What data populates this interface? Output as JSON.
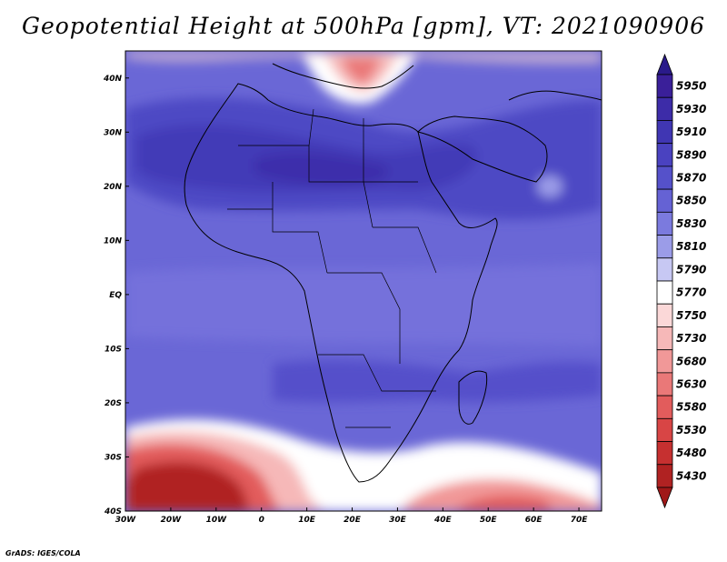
{
  "title": "Geopotential Height at 500hPa [gpm], VT: 2021090906",
  "credit": "GrADS: IGES/COLA",
  "map": {
    "lon_range": [
      -30,
      75
    ],
    "lat_range": [
      -40,
      45
    ],
    "lon_ticks": [
      {
        "value": -30,
        "label": "30W"
      },
      {
        "value": -20,
        "label": "20W"
      },
      {
        "value": -10,
        "label": "10W"
      },
      {
        "value": 0,
        "label": "0"
      },
      {
        "value": 10,
        "label": "10E"
      },
      {
        "value": 20,
        "label": "20E"
      },
      {
        "value": 30,
        "label": "30E"
      },
      {
        "value": 40,
        "label": "40E"
      },
      {
        "value": 50,
        "label": "50E"
      },
      {
        "value": 60,
        "label": "60E"
      },
      {
        "value": 70,
        "label": "70E"
      }
    ],
    "lat_ticks": [
      {
        "value": 40,
        "label": "40N"
      },
      {
        "value": 30,
        "label": "30N"
      },
      {
        "value": 20,
        "label": "20N"
      },
      {
        "value": 10,
        "label": "10N"
      },
      {
        "value": 0,
        "label": "EQ"
      },
      {
        "value": -10,
        "label": "10S"
      },
      {
        "value": -20,
        "label": "20S"
      },
      {
        "value": -30,
        "label": "30S"
      },
      {
        "value": -40,
        "label": "40S"
      }
    ]
  },
  "colorbar": {
    "levels": [
      {
        "label": "5950",
        "color": "#3a1f99"
      },
      {
        "label": "5930",
        "color": "#3d2ca8"
      },
      {
        "label": "5910",
        "color": "#4036b3"
      },
      {
        "label": "5890",
        "color": "#4a42c0"
      },
      {
        "label": "5870",
        "color": "#5551ca"
      },
      {
        "label": "5850",
        "color": "#6562d4"
      },
      {
        "label": "5830",
        "color": "#7b7ade"
      },
      {
        "label": "5810",
        "color": "#9b9ce8"
      },
      {
        "label": "5790",
        "color": "#c7c8f3"
      },
      {
        "label": "5770",
        "color": "#ffffff"
      },
      {
        "label": "5750",
        "color": "#fbd8d8"
      },
      {
        "label": "5730",
        "color": "#f6b8b8"
      },
      {
        "label": "5680",
        "color": "#f19898"
      },
      {
        "label": "5630",
        "color": "#ea7878"
      },
      {
        "label": "5580",
        "color": "#e25c5c"
      },
      {
        "label": "5530",
        "color": "#d84545"
      },
      {
        "label": "5480",
        "color": "#c63030"
      },
      {
        "label": "5430",
        "color": "#b02222"
      }
    ],
    "top_color": "#2a1a8a",
    "bottom_color": "#a01818"
  }
}
